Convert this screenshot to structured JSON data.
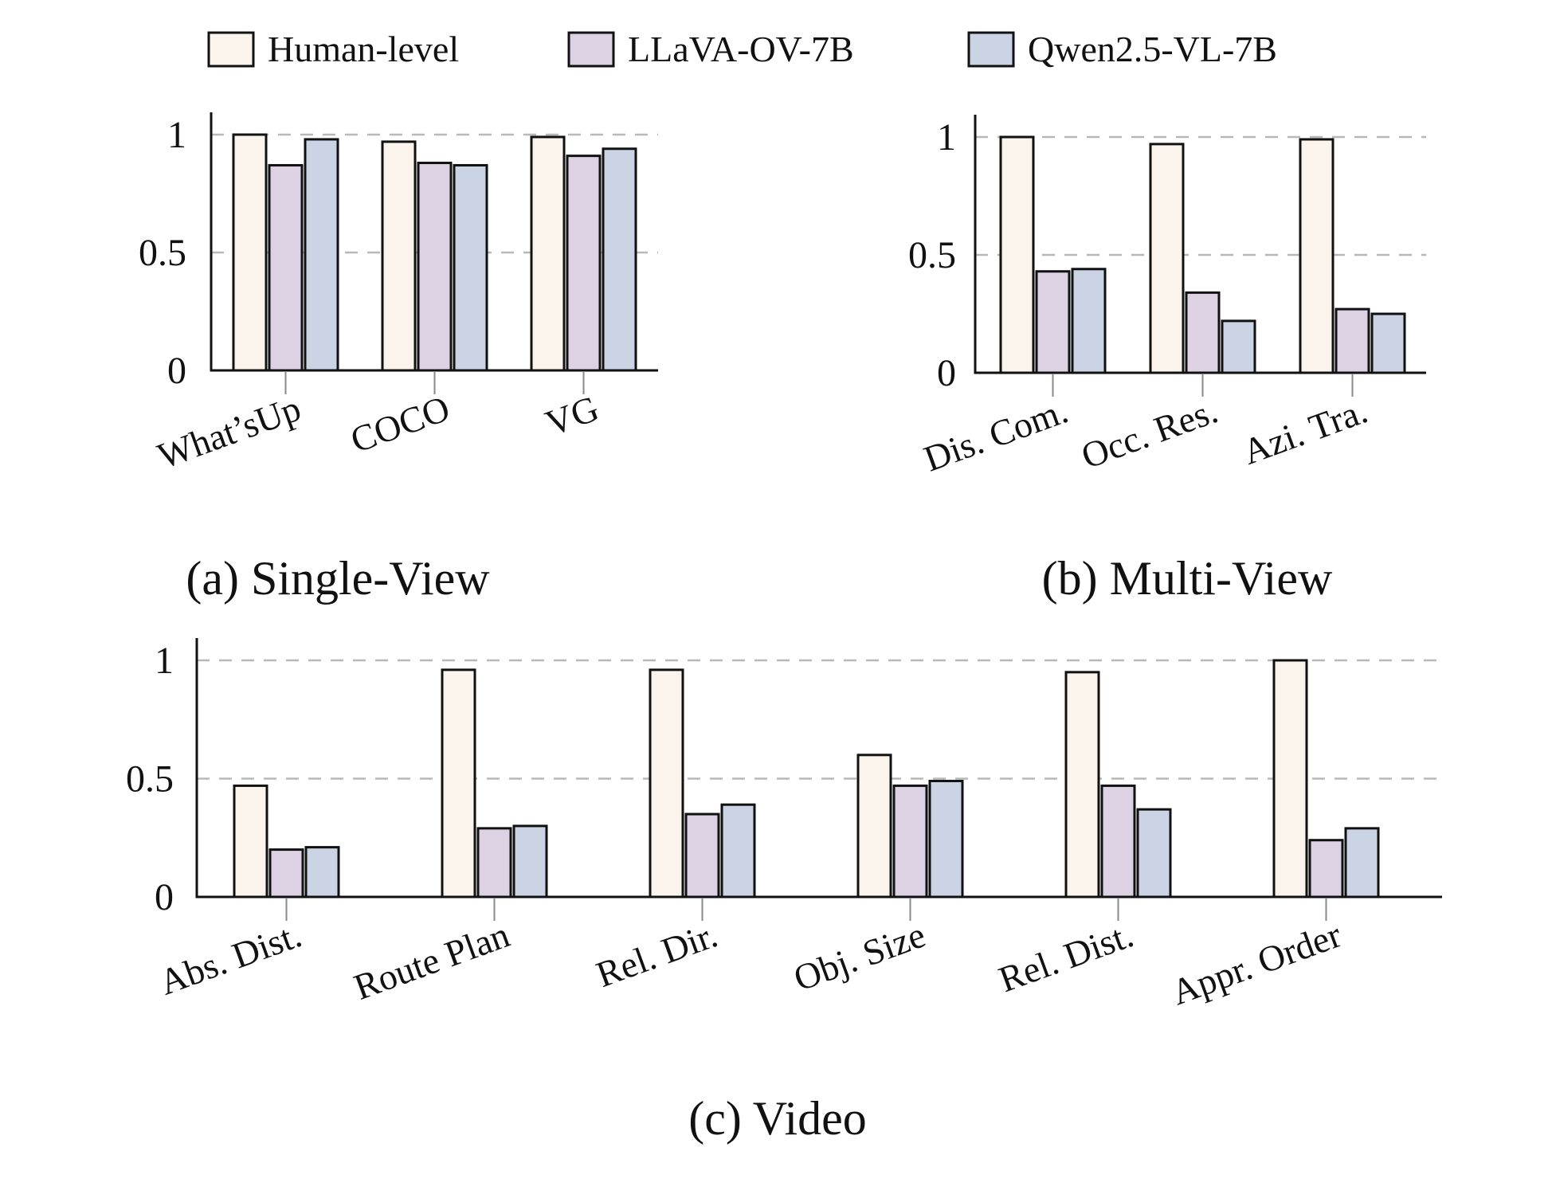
{
  "legend": [
    {
      "name": "Human-level",
      "color": "#faf4ec"
    },
    {
      "name": "LLaVA-OV-7B",
      "color": "#dcd2e3"
    },
    {
      "name": "Qwen2.5-VL-7B",
      "color": "#cad4e4"
    }
  ],
  "chart_data": [
    {
      "type": "bar",
      "caption": "(a) Single-View",
      "categories": [
        "What’sUp",
        "COCO",
        "VG"
      ],
      "series": [
        {
          "name": "Human-level",
          "values": [
            1.0,
            0.97,
            0.99
          ]
        },
        {
          "name": "LLaVA-OV-7B",
          "values": [
            0.87,
            0.88,
            0.91
          ]
        },
        {
          "name": "Qwen2.5-VL-7B",
          "values": [
            0.98,
            0.87,
            0.94
          ]
        }
      ],
      "ylim": [
        0,
        1.1
      ],
      "yticks": [
        0,
        0.5,
        1
      ],
      "ytick_labels": [
        "0",
        "0.5",
        "1"
      ],
      "grid": true
    },
    {
      "type": "bar",
      "caption": "(b) Multi-View",
      "categories": [
        "Dis. Com.",
        "Occ. Res.",
        "Azi. Tra."
      ],
      "series": [
        {
          "name": "Human-level",
          "values": [
            1.0,
            0.97,
            0.99
          ]
        },
        {
          "name": "LLaVA-OV-7B",
          "values": [
            0.43,
            0.34,
            0.27
          ]
        },
        {
          "name": "Qwen2.5-VL-7B",
          "values": [
            0.44,
            0.22,
            0.25
          ]
        }
      ],
      "ylim": [
        0,
        1.1
      ],
      "yticks": [
        0,
        0.5,
        1
      ],
      "ytick_labels": [
        "0",
        "0.5",
        "1"
      ],
      "grid": true
    },
    {
      "type": "bar",
      "caption": "(c) Video",
      "categories": [
        "Abs. Dist.",
        "Route Plan",
        "Rel. Dir.",
        "Obj. Size",
        "Rel. Dist.",
        "Appr. Order"
      ],
      "series": [
        {
          "name": "Human-level",
          "values": [
            0.47,
            0.96,
            0.96,
            0.6,
            0.95,
            1.0
          ]
        },
        {
          "name": "LLaVA-OV-7B",
          "values": [
            0.2,
            0.29,
            0.35,
            0.47,
            0.47,
            0.24
          ]
        },
        {
          "name": "Qwen2.5-VL-7B",
          "values": [
            0.21,
            0.3,
            0.39,
            0.49,
            0.37,
            0.29
          ]
        }
      ],
      "ylim": [
        0,
        1.1
      ],
      "yticks": [
        0,
        0.5,
        1
      ],
      "ytick_labels": [
        "0",
        "0.5",
        "1"
      ],
      "grid": true
    }
  ]
}
